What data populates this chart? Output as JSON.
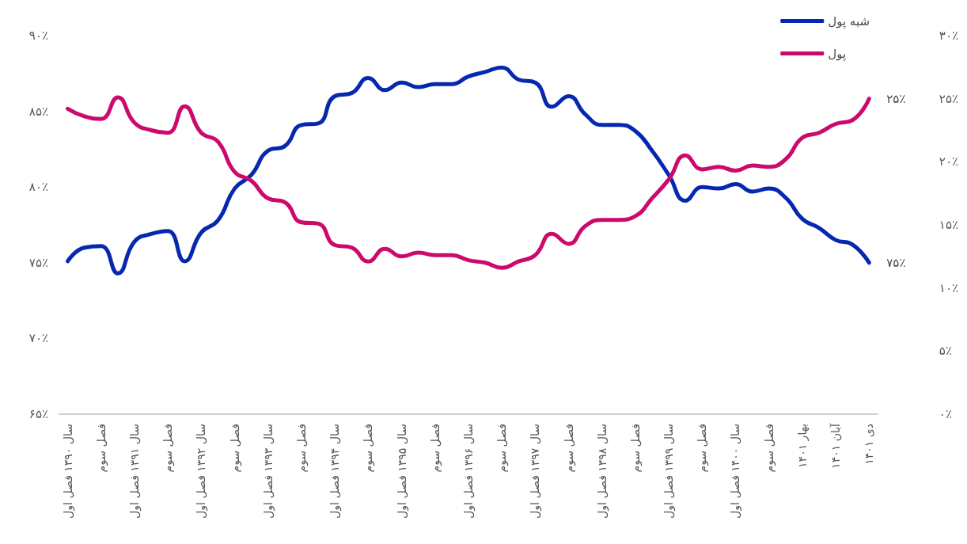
{
  "chart_data": {
    "type": "line",
    "categories": [
      "سال ۱۳۹۰ فصل اول",
      null,
      "فصل سوم",
      null,
      "سال ۱۳۹۱ فصل اول",
      null,
      "فصل سوم",
      null,
      "سال ۱۳۹۲ فصل اول",
      null,
      "فصل سوم",
      null,
      "سال ۱۳۹۳ فصل اول",
      null,
      "فصل سوم",
      null,
      "سال ۱۳۹۴ فصل اول",
      null,
      "فصل سوم",
      null,
      "سال ۱۳۹۵ فصل اول",
      null,
      "فصل سوم",
      null,
      "سال ۱۳۹۶ فصل اول",
      null,
      "فصل سوم",
      null,
      "سال ۱۳۹۷ فصل اول",
      null,
      "فصل سوم",
      null,
      "سال ۱۳۹۸ فصل اول",
      null,
      "فصل سوم",
      null,
      "سال ۱۳۹۹ فصل اول",
      null,
      "فصل سوم",
      null,
      "سال ۱۴۰۰ فصل اول",
      null,
      "فصل سوم",
      null,
      "بهار ۱۴۰۱",
      null,
      "آبان ۱۴۰۱",
      null,
      "دی ۱۴۰۱"
    ],
    "series": [
      {
        "name": "شبه پول",
        "color": "#0628b0",
        "values": [
          75.1,
          76.0,
          76.1,
          74.3,
          76.4,
          76.9,
          77.1,
          75.1,
          77.0,
          77.8,
          79.9,
          80.8,
          82.4,
          82.7,
          84.1,
          84.2,
          86.0,
          86.2,
          87.2,
          86.4,
          86.9,
          86.6,
          86.8,
          86.8,
          87.3,
          87.6,
          87.9,
          87.1,
          86.9,
          85.3,
          86.0,
          84.8,
          84.1,
          84.1,
          83.7,
          82.4,
          80.8,
          79.1,
          80.0,
          79.9,
          80.2,
          79.7,
          79.9,
          79.3,
          77.9,
          77.3,
          76.5,
          76.2,
          75
        ],
        "value_labels": [
          null,
          null,
          null,
          null,
          null,
          null,
          null,
          null,
          null,
          null,
          null,
          null,
          null,
          null,
          null,
          null,
          null,
          null,
          null,
          null,
          null,
          null,
          null,
          null,
          null,
          null,
          null,
          null,
          null,
          null,
          null,
          null,
          null,
          null,
          null,
          null,
          null,
          null,
          null,
          null,
          null,
          null,
          null,
          null,
          null,
          null,
          null,
          null,
          "۷۵٪"
        ]
      },
      {
        "name": "پول",
        "color": "#cc0a6e",
        "axis": "y2",
        "values": [
          24.2,
          23.6,
          23.4,
          25.1,
          23.1,
          22.5,
          22.3,
          24.4,
          22.3,
          21.6,
          19.2,
          18.5,
          17.1,
          16.8,
          15.2,
          15.1,
          13.4,
          13.2,
          12.1,
          13.1,
          12.5,
          12.8,
          12.6,
          12.6,
          12.2,
          12.0,
          11.6,
          12.1,
          12.6,
          14.3,
          13.5,
          14.9,
          15.4,
          15.4,
          15.7,
          17.1,
          18.6,
          20.5,
          19.4,
          19.6,
          19.3,
          19.7,
          19.6,
          20.2,
          21.9,
          22.3,
          23.0,
          23.3,
          25
        ],
        "value_labels": [
          null,
          null,
          null,
          null,
          null,
          null,
          null,
          null,
          null,
          null,
          null,
          null,
          null,
          null,
          null,
          null,
          null,
          null,
          null,
          null,
          null,
          null,
          null,
          null,
          null,
          null,
          null,
          null,
          null,
          null,
          null,
          null,
          null,
          null,
          null,
          null,
          null,
          null,
          null,
          null,
          null,
          null,
          null,
          null,
          null,
          null,
          null,
          null,
          "۲۵٪"
        ]
      }
    ],
    "ylim": [
      65,
      90
    ],
    "yticks": [
      {
        "value": 65,
        "label": "۶۵٪"
      },
      {
        "value": 70,
        "label": "۷۰٪"
      },
      {
        "value": 75,
        "label": "۷۵٪"
      },
      {
        "value": 80,
        "label": "۸۰٪"
      },
      {
        "value": 85,
        "label": "۸۵٪"
      },
      {
        "value": 90,
        "label": "۹۰٪"
      }
    ],
    "y2lim": [
      0,
      30
    ],
    "y2ticks": [
      {
        "value": 0,
        "label": "۰٪"
      },
      {
        "value": 5,
        "label": "۵٪"
      },
      {
        "value": 10,
        "label": "۱۰٪"
      },
      {
        "value": 15,
        "label": "۱۵٪"
      },
      {
        "value": 20,
        "label": "۲۰٪"
      },
      {
        "value": 25,
        "label": "۲۵٪"
      },
      {
        "value": 30,
        "label": "۳۰٪"
      }
    ],
    "grid": false,
    "legend": "top right",
    "marker": "none",
    "line_style": "solid"
  }
}
